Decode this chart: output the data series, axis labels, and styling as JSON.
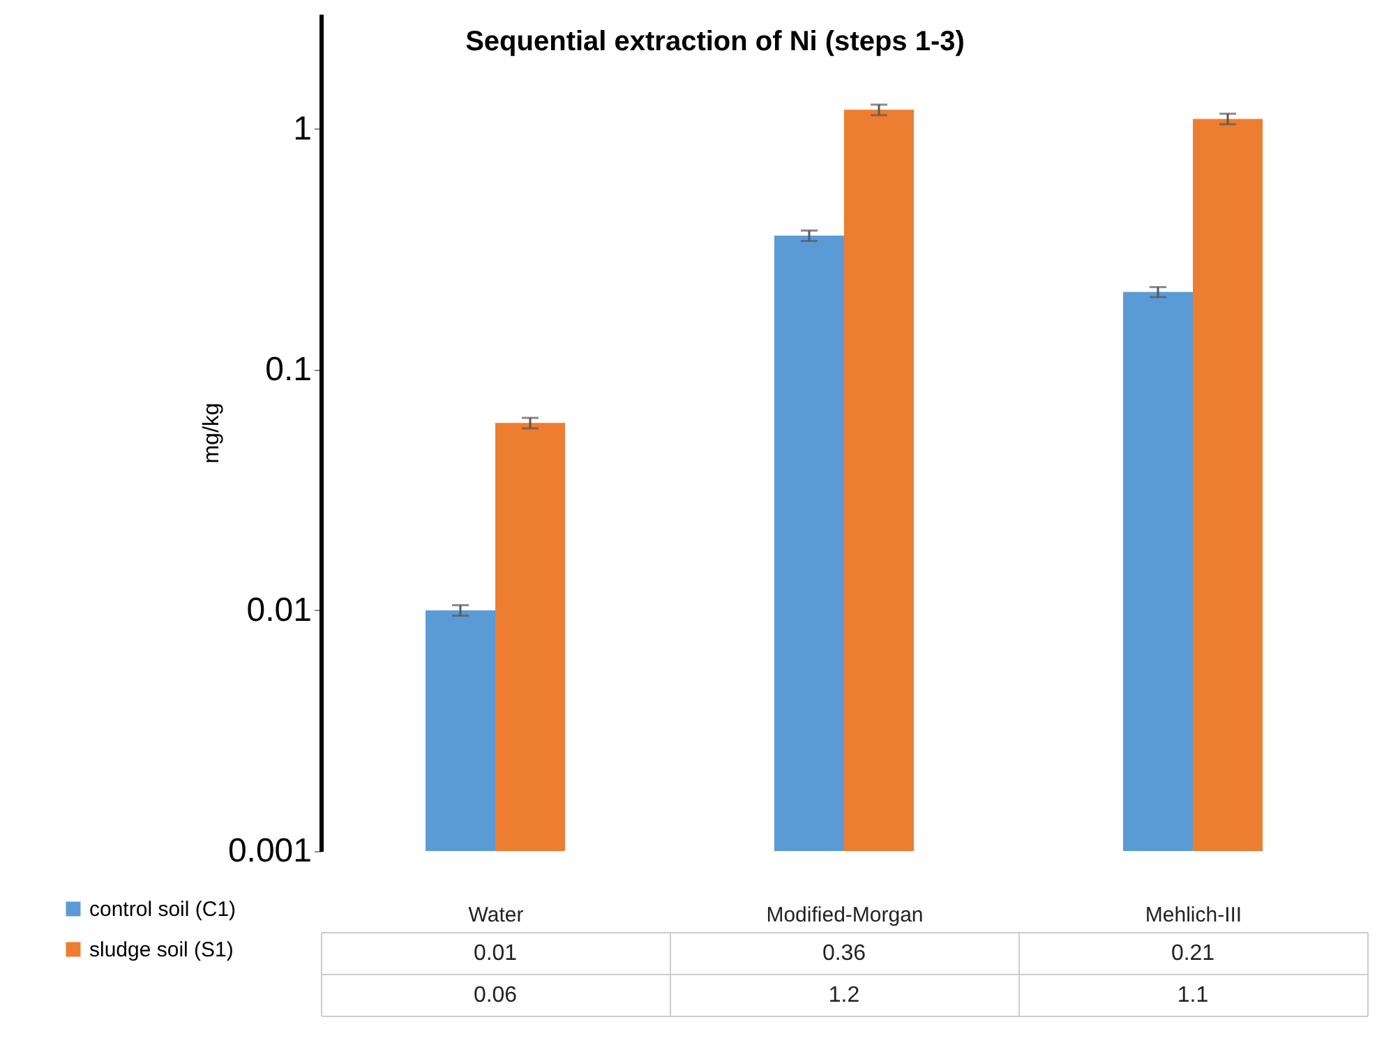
{
  "chart_data": {
    "type": "bar",
    "title": "Sequential extraction of Ni (steps 1-3)",
    "ylabel": "mg/kg",
    "categories": [
      "Water",
      "Modified-Morgan",
      "Mehlich-III"
    ],
    "series": [
      {
        "name": "control soil (C1)",
        "color": "#5b9bd5",
        "values": [
          0.01,
          0.36,
          0.21
        ],
        "errors": [
          0.0005,
          0.018,
          0.01
        ]
      },
      {
        "name": "sludge soil (S1)",
        "color": "#ed7d31",
        "values": [
          0.06,
          1.2,
          1.1
        ],
        "errors": [
          0.003,
          0.06,
          0.055
        ]
      }
    ],
    "log": "y",
    "ylim": [
      0.001,
      3
    ],
    "yticks": [
      0.001,
      0.01,
      0.1,
      1
    ],
    "grid": false,
    "data_labels": true,
    "legend": "bottom"
  }
}
